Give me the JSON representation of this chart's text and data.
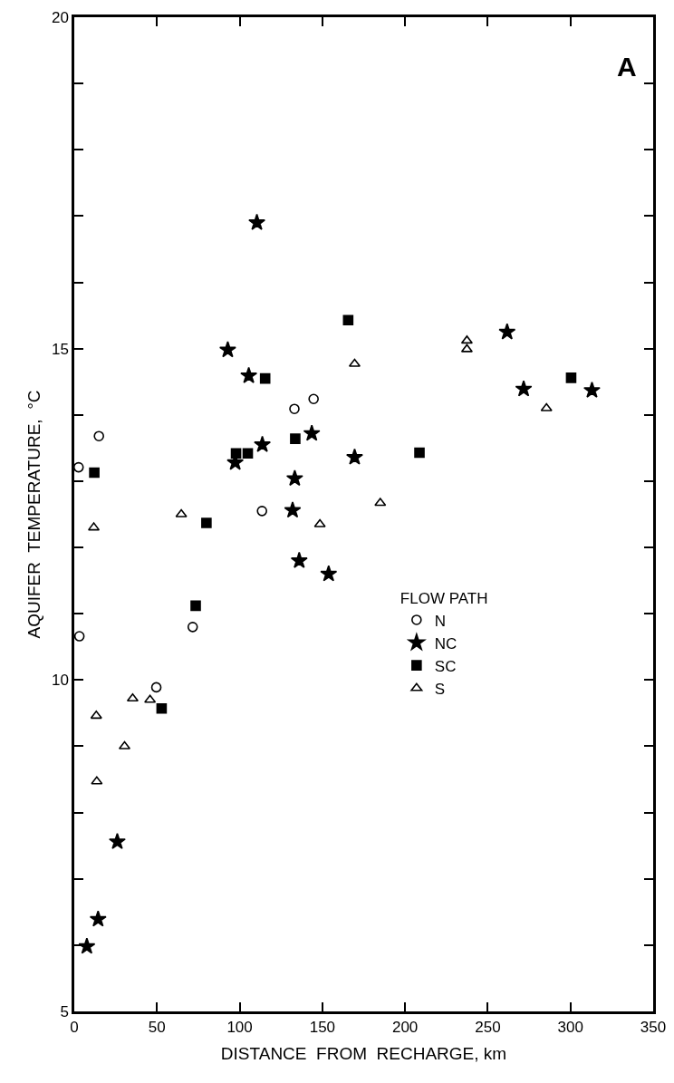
{
  "chart_data": {
    "type": "scatter",
    "xlabel": "DISTANCE  FROM  RECHARGE, km",
    "ylabel": "AQUIFER  TEMPERATURE,  °C",
    "legend_title": "FLOW PATH",
    "legend": "right",
    "grid": false,
    "annotations": [
      "A"
    ],
    "xlim": [
      0,
      350
    ],
    "xticks": [
      0,
      50,
      100,
      150,
      200,
      250,
      300,
      350
    ],
    "ylim": [
      5,
      20
    ],
    "yticks": [
      5,
      {
        "value": 6,
        "label": null
      },
      {
        "value": 7,
        "label": null
      },
      {
        "value": 8,
        "label": null
      },
      {
        "value": 9,
        "label": null
      },
      10,
      {
        "value": 11,
        "label": null
      },
      {
        "value": 12,
        "label": null
      },
      {
        "value": 13,
        "label": null
      },
      {
        "value": 14,
        "label": null
      },
      15,
      {
        "value": 16,
        "label": null
      },
      {
        "value": 17,
        "label": null
      },
      {
        "value": 18,
        "label": null
      },
      {
        "value": 19,
        "label": null
      },
      20
    ],
    "series": [
      {
        "name": "N",
        "color": "#000000",
        "marker": "circle-open",
        "x": [
          144.7,
          133.1,
          14.9,
          2.6,
          113.5,
          71.6,
          3.1,
          49.6
        ],
        "values": [
          14.24,
          14.09,
          13.68,
          13.21,
          12.55,
          10.8,
          10.66,
          9.89
        ]
      },
      {
        "name": "NC",
        "color": "#000000",
        "marker": "star",
        "x": [
          110.4,
          92.8,
          105.5,
          143.6,
          113.7,
          97.3,
          133.3,
          132,
          136,
          153.8,
          26,
          14.4,
          7.6,
          261.7,
          271.7,
          313,
          169.5
        ],
        "values": [
          16.9,
          14.98,
          14.59,
          13.72,
          13.55,
          13.28,
          13.04,
          12.56,
          11.8,
          11.6,
          7.56,
          6.39,
          5.98,
          15.25,
          14.39,
          14.37,
          13.36
        ]
      },
      {
        "name": "SC",
        "color": "#000000",
        "marker": "square",
        "x": [
          115.4,
          133.6,
          104.9,
          97.8,
          12.1,
          79.9,
          73.4,
          52.8,
          165.6,
          300.4,
          208.7
        ],
        "values": [
          14.55,
          13.64,
          13.42,
          13.42,
          13.13,
          12.37,
          11.12,
          9.57,
          15.43,
          14.56,
          13.43
        ]
      },
      {
        "name": "S",
        "color": "#000000",
        "marker": "triangle-open",
        "x": [
          64.7,
          148.5,
          11.8,
          35.3,
          45.8,
          13.3,
          30.4,
          13.6,
          237.4,
          237.4,
          169.5,
          285.5,
          185
        ],
        "values": [
          12.5,
          12.35,
          12.3,
          9.72,
          9.7,
          9.46,
          9.0,
          8.47,
          15.12,
          14.99,
          14.77,
          14.1,
          12.67
        ]
      }
    ]
  }
}
